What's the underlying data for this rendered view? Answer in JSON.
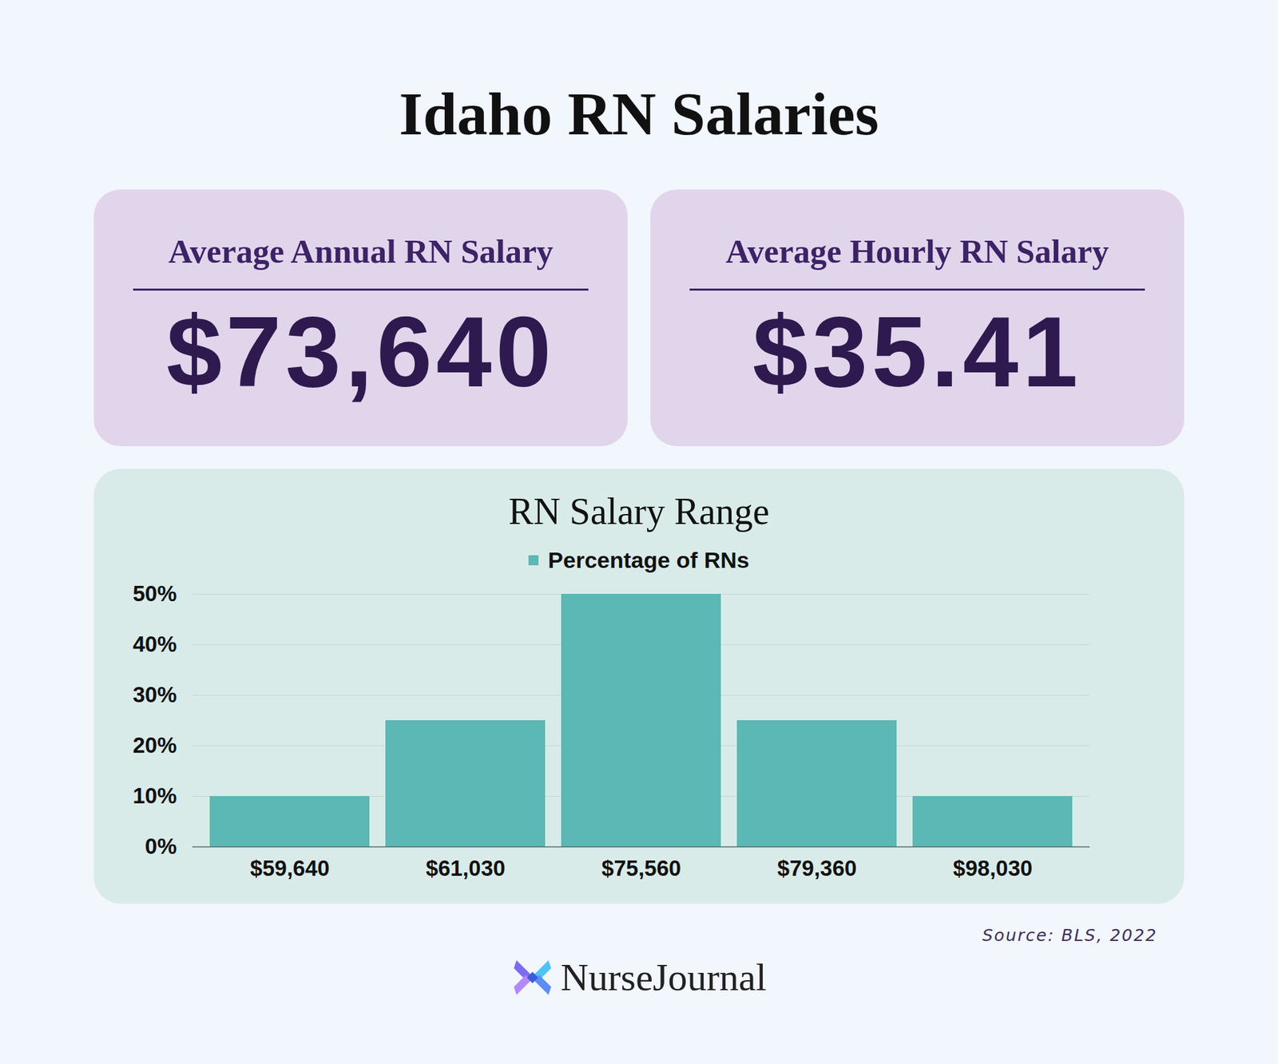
{
  "title": "Idaho RN Salaries",
  "cards": [
    {
      "label": "Average Annual RN Salary",
      "value": "$73,640"
    },
    {
      "label": "Average Hourly RN Salary",
      "value": "$35.41"
    }
  ],
  "chart_data": {
    "type": "bar",
    "title": "RN Salary Range",
    "categories": [
      "$59,640",
      "$61,030",
      "$75,560",
      "$79,360",
      "$98,030"
    ],
    "series": [
      {
        "name": "Percentage of RNs",
        "color": "#5bb8b4",
        "values": [
          10,
          25,
          50,
          25,
          10
        ]
      }
    ],
    "ylim": [
      0,
      50
    ],
    "yticks": [
      {
        "value": 0,
        "label": "0%"
      },
      {
        "value": 10,
        "label": "10%"
      },
      {
        "value": 20,
        "label": "20%"
      },
      {
        "value": 30,
        "label": "30%"
      },
      {
        "value": 40,
        "label": "40%"
      },
      {
        "value": 50,
        "label": "50%"
      }
    ],
    "grid": true,
    "legend": "top"
  },
  "source": "Source: BLS, 2022",
  "brand": "NurseJournal"
}
